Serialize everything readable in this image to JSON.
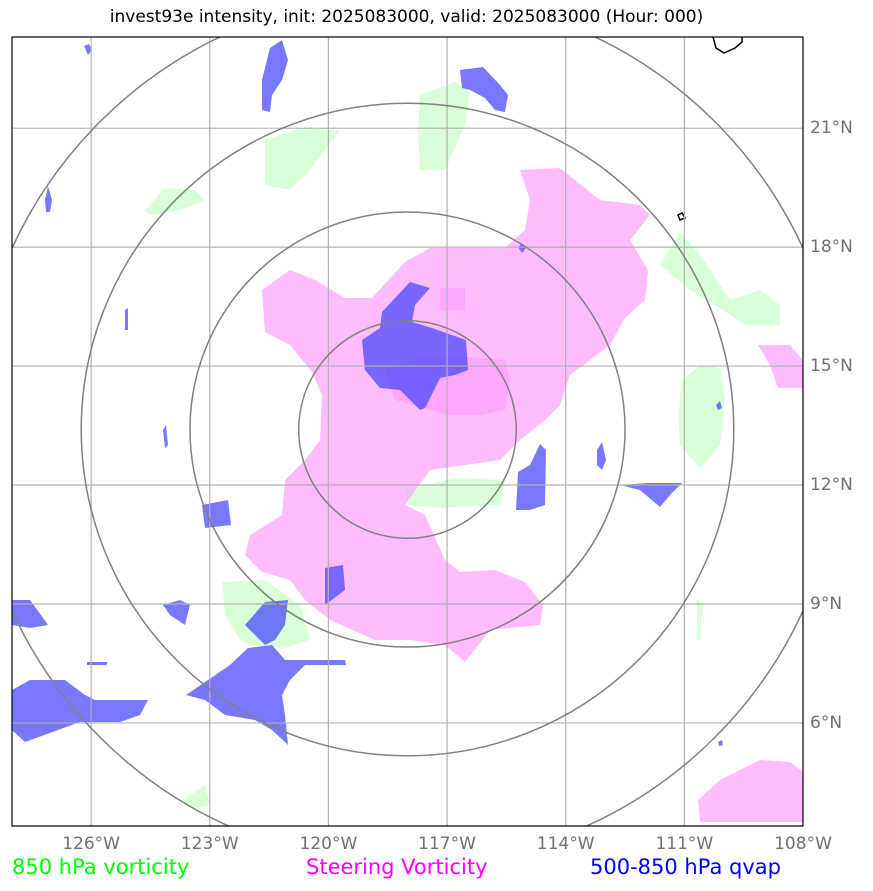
{
  "title": "invest93e intensity, init: 2025083000, valid: 2025083000 (Hour: 000)",
  "map": {
    "lon_labels": [
      "126°W",
      "123°W",
      "120°W",
      "117°W",
      "114°W",
      "111°W",
      "108°W"
    ],
    "lat_labels": [
      "21°N",
      "18°N",
      "15°N",
      "12°N",
      "9°N",
      "6°N"
    ],
    "lon_range": [
      -128,
      -108
    ],
    "lat_range": [
      3.4,
      23.3
    ],
    "center": {
      "lon": -118,
      "lat": 13.4
    },
    "range_ring_radii_deg": [
      2.75,
      5.5,
      8.25
    ],
    "colors": {
      "vort850": "#ccffcc",
      "steering": "#ff99ff",
      "qvap": "#4444ff",
      "rings": "#808080",
      "grid": "#b0b0b0"
    }
  },
  "legend": {
    "vort850": {
      "label": "850 hPa vorticity",
      "color": "#00ff00"
    },
    "steering": {
      "label": "Steering Vorticity",
      "color": "#ff00ff"
    },
    "qvap": {
      "label": "500-850 hPa qvap",
      "color": "#0000ff"
    }
  }
}
